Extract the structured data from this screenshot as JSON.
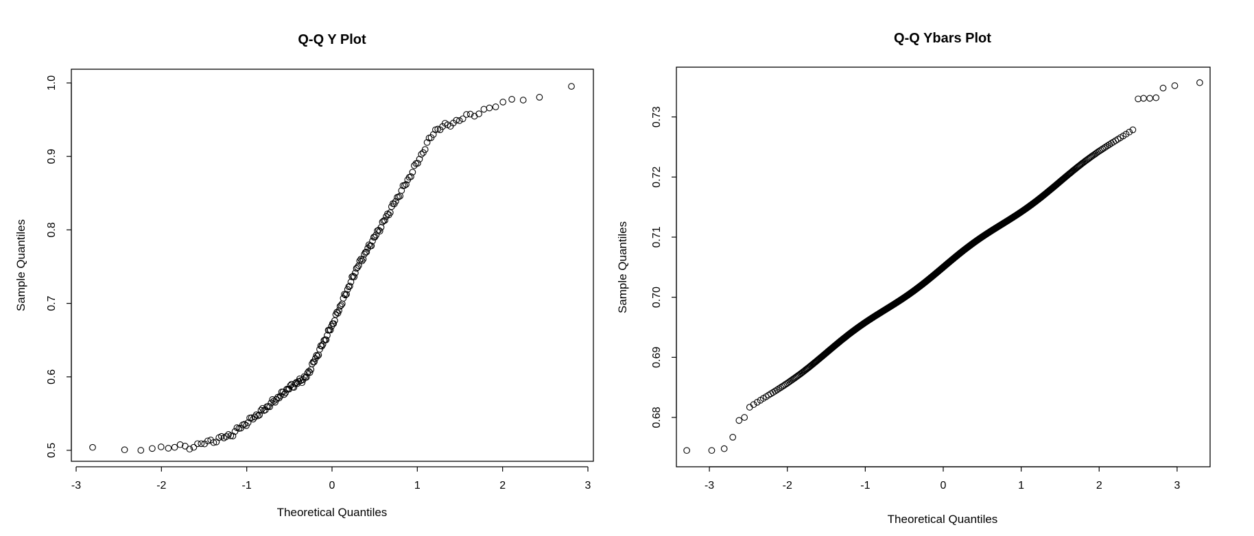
{
  "chart_data": [
    {
      "type": "scatter",
      "title": "Q-Q Y Plot",
      "xlabel": "Theoretical Quantiles",
      "ylabel": "Sample Quantiles",
      "xlim": [
        -3,
        3
      ],
      "ylim": [
        0.5,
        1.0
      ],
      "xticks": [
        "-3",
        "-2",
        "-1",
        "0",
        "1",
        "2",
        "3"
      ],
      "yticks": [
        "0.5",
        "0.6",
        "0.7",
        "0.8",
        "0.9",
        "1.0"
      ],
      "grid": false,
      "n_points": 200,
      "quantile_curve": [
        [
          -3.0,
          0.5
        ],
        [
          -2.0,
          0.503
        ],
        [
          -1.6,
          0.506
        ],
        [
          -1.2,
          0.52
        ],
        [
          -0.8,
          0.555
        ],
        [
          -0.5,
          0.585
        ],
        [
          -0.3,
          0.6
        ],
        [
          0.0,
          0.67
        ],
        [
          0.3,
          0.75
        ],
        [
          0.6,
          0.81
        ],
        [
          0.9,
          0.87
        ],
        [
          1.2,
          0.935
        ],
        [
          1.6,
          0.955
        ],
        [
          2.0,
          0.972
        ],
        [
          2.5,
          0.986
        ],
        [
          3.0,
          1.0
        ]
      ]
    },
    {
      "type": "scatter",
      "title": "Q-Q Ybars Plot",
      "xlabel": "Theoretical Quantiles",
      "ylabel": "Sample Quantiles",
      "xlim": [
        -3.3,
        3.3
      ],
      "ylim": [
        0.6735,
        0.736
      ],
      "xticks": [
        "-3",
        "-2",
        "-1",
        "0",
        "1",
        "2",
        "3"
      ],
      "yticks": [
        "0.68",
        "0.69",
        "0.70",
        "0.71",
        "0.72",
        "0.73"
      ],
      "grid": false,
      "n_points": 1000,
      "intercept": 0.705,
      "slope": 0.0095,
      "tail_points": [
        [
          -3.29,
          0.6745
        ],
        [
          -2.97,
          0.6745
        ],
        [
          -2.81,
          0.6748
        ],
        [
          -2.7,
          0.6767
        ],
        [
          -2.62,
          0.6795
        ],
        [
          -2.55,
          0.68
        ],
        [
          2.5,
          0.733
        ],
        [
          2.57,
          0.7331
        ],
        [
          2.65,
          0.7331
        ],
        [
          2.73,
          0.7332
        ],
        [
          2.82,
          0.7348
        ],
        [
          2.97,
          0.7352
        ],
        [
          3.29,
          0.7357
        ]
      ]
    }
  ]
}
